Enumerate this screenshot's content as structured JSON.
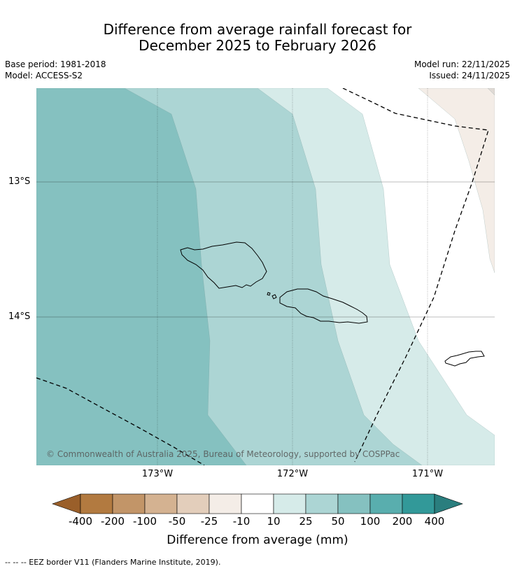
{
  "title_line1": "Difference from average rainfall forecast for",
  "title_line2": "December 2025 to February 2026",
  "meta": {
    "base_period": "Base period: 1981-2018",
    "model": "Model: ACCESS-S2",
    "model_run": "Model run: 22/11/2025",
    "issued": "Issued: 24/11/2025"
  },
  "axes": {
    "lat_labels": [
      "13°S",
      "14°S"
    ],
    "lon_labels": [
      "173°W",
      "172°W",
      "171°W"
    ]
  },
  "copyright": "© Commonwealth of Australia 2025, Bureau of Meteorology, supported by COSPPac",
  "colorbar": {
    "title": "Difference from average (mm)",
    "tick_labels": [
      "-400",
      "-200",
      "-100",
      "-50",
      "-25",
      "-10",
      "10",
      "25",
      "50",
      "100",
      "200",
      "400"
    ],
    "colors": [
      "#9a5f2a",
      "#b27a40",
      "#c29568",
      "#d4b291",
      "#e3cebb",
      "#f4ede7",
      "#ffffff",
      "#d6ebe9",
      "#acd5d4",
      "#85c1c0",
      "#59aeae",
      "#329999",
      "#2a7e7e"
    ]
  },
  "map_colors": {
    "band_100": "#85c1c0",
    "band_50": "#acd5d4",
    "band_25": "#d6ebe9",
    "band_neutral": "#ffffff",
    "band_dry": "#f4ede7"
  },
  "footnote": "--  --  -- EEZ border V11 (Flanders Marine Institute, 2019)."
}
